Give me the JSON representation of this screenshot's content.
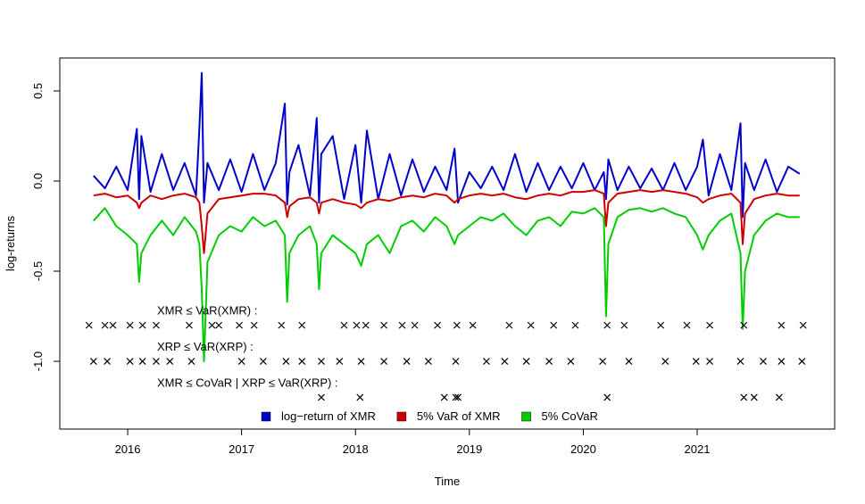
{
  "chart_data": {
    "type": "line",
    "x_label": "Time",
    "y_label": "log-returns",
    "xlim": [
      2015.404,
      2022.207
    ],
    "ylim": [
      -1.376,
      0.683
    ],
    "xticks": [
      2016,
      2017,
      2018,
      2019,
      2020,
      2021
    ],
    "yticks": [
      {
        "value": -1,
        "label": "-1.0"
      },
      {
        "value": -0.5,
        "label": "-0.5"
      },
      {
        "value": 0,
        "label": "0.0"
      },
      0.5
    ],
    "legend": "bottom",
    "x": [
      2015.7,
      2015.8,
      2015.9,
      2016.0,
      2016.08,
      2016.1,
      2016.12,
      2016.2,
      2016.3,
      2016.4,
      2016.5,
      2016.6,
      2016.63,
      2016.65,
      2016.67,
      2016.7,
      2016.8,
      2016.9,
      2017.0,
      2017.1,
      2017.2,
      2017.3,
      2017.38,
      2017.4,
      2017.42,
      2017.5,
      2017.6,
      2017.66,
      2017.68,
      2017.7,
      2017.8,
      2017.9,
      2018.0,
      2018.05,
      2018.1,
      2018.2,
      2018.3,
      2018.4,
      2018.5,
      2018.6,
      2018.7,
      2018.8,
      2018.87,
      2018.9,
      2019.0,
      2019.1,
      2019.2,
      2019.3,
      2019.4,
      2019.5,
      2019.6,
      2019.7,
      2019.8,
      2019.9,
      2020.0,
      2020.1,
      2020.18,
      2020.2,
      2020.22,
      2020.3,
      2020.4,
      2020.5,
      2020.6,
      2020.7,
      2020.8,
      2020.9,
      2021.0,
      2021.05,
      2021.1,
      2021.2,
      2021.3,
      2021.38,
      2021.4,
      2021.42,
      2021.5,
      2021.6,
      2021.7,
      2021.8,
      2021.9
    ],
    "series": [
      {
        "name": "log−return of XMR",
        "color": "#0000cd",
        "values": [
          0.03,
          -0.04,
          0.08,
          -0.05,
          0.29,
          -0.1,
          0.25,
          -0.06,
          0.15,
          -0.05,
          0.1,
          -0.08,
          0.3,
          0.6,
          -0.12,
          0.1,
          -0.05,
          0.12,
          -0.06,
          0.15,
          -0.05,
          0.1,
          0.43,
          -0.13,
          0.05,
          0.2,
          -0.08,
          0.35,
          -0.12,
          0.15,
          0.25,
          -0.1,
          0.2,
          -0.12,
          0.28,
          -0.1,
          0.15,
          -0.08,
          0.12,
          -0.06,
          0.08,
          -0.05,
          0.18,
          -0.12,
          0.05,
          -0.04,
          0.08,
          -0.05,
          0.15,
          -0.06,
          0.1,
          -0.05,
          0.08,
          -0.04,
          0.1,
          -0.05,
          0.05,
          -0.1,
          0.12,
          -0.05,
          0.08,
          -0.04,
          0.07,
          -0.05,
          0.1,
          -0.05,
          0.08,
          0.23,
          -0.08,
          0.15,
          -0.05,
          0.32,
          -0.2,
          0.1,
          -0.05,
          0.12,
          -0.06,
          0.08,
          0.04
        ]
      },
      {
        "name": "5% VaR of XMR",
        "color": "#cd0000",
        "values": [
          -0.08,
          -0.07,
          -0.09,
          -0.08,
          -0.12,
          -0.15,
          -0.12,
          -0.08,
          -0.1,
          -0.08,
          -0.07,
          -0.09,
          -0.12,
          -0.25,
          -0.4,
          -0.18,
          -0.1,
          -0.09,
          -0.08,
          -0.07,
          -0.07,
          -0.08,
          -0.12,
          -0.2,
          -0.14,
          -0.1,
          -0.09,
          -0.12,
          -0.18,
          -0.12,
          -0.1,
          -0.12,
          -0.13,
          -0.15,
          -0.12,
          -0.1,
          -0.11,
          -0.09,
          -0.08,
          -0.09,
          -0.07,
          -0.08,
          -0.12,
          -0.1,
          -0.08,
          -0.07,
          -0.08,
          -0.07,
          -0.09,
          -0.1,
          -0.08,
          -0.07,
          -0.08,
          -0.06,
          -0.06,
          -0.05,
          -0.07,
          -0.25,
          -0.12,
          -0.07,
          -0.06,
          -0.05,
          -0.06,
          -0.05,
          -0.06,
          -0.07,
          -0.09,
          -0.12,
          -0.1,
          -0.08,
          -0.07,
          -0.12,
          -0.35,
          -0.18,
          -0.1,
          -0.08,
          -0.07,
          -0.08,
          -0.08
        ]
      },
      {
        "name": "5% CoVaR",
        "color": "#00cd00",
        "values": [
          -0.22,
          -0.15,
          -0.25,
          -0.3,
          -0.35,
          -0.56,
          -0.4,
          -0.3,
          -0.22,
          -0.3,
          -0.2,
          -0.28,
          -0.35,
          -0.6,
          -1.0,
          -0.45,
          -0.3,
          -0.25,
          -0.28,
          -0.2,
          -0.25,
          -0.22,
          -0.3,
          -0.67,
          -0.4,
          -0.3,
          -0.25,
          -0.35,
          -0.6,
          -0.4,
          -0.3,
          -0.35,
          -0.4,
          -0.47,
          -0.35,
          -0.3,
          -0.4,
          -0.25,
          -0.22,
          -0.28,
          -0.2,
          -0.25,
          -0.35,
          -0.3,
          -0.25,
          -0.2,
          -0.22,
          -0.18,
          -0.25,
          -0.3,
          -0.22,
          -0.2,
          -0.25,
          -0.17,
          -0.18,
          -0.15,
          -0.2,
          -0.75,
          -0.35,
          -0.2,
          -0.16,
          -0.15,
          -0.17,
          -0.15,
          -0.18,
          -0.2,
          -0.3,
          -0.38,
          -0.3,
          -0.22,
          -0.18,
          -0.4,
          -0.82,
          -0.5,
          -0.3,
          -0.22,
          -0.18,
          -0.2,
          -0.2
        ]
      }
    ],
    "markers": [
      {
        "label": "XMR ≤ VaR(XMR) :",
        "y": -0.8,
        "x": [
          2015.66,
          2015.8,
          2015.87,
          2016.02,
          2016.13,
          2016.25,
          2016.54,
          2016.74,
          2016.8,
          2016.98,
          2017.11,
          2017.35,
          2017.53,
          2017.9,
          2018.01,
          2018.09,
          2018.25,
          2018.41,
          2018.52,
          2018.72,
          2018.89,
          2019.03,
          2019.35,
          2019.54,
          2019.74,
          2019.93,
          2020.21,
          2020.36,
          2020.68,
          2020.91,
          2021.11,
          2021.41,
          2021.74,
          2021.93
        ]
      },
      {
        "label": "XRP ≤ VaR(XRP) :",
        "y": -1.0,
        "x": [
          2015.7,
          2015.82,
          2016.02,
          2016.13,
          2016.25,
          2016.37,
          2016.56,
          2017.0,
          2017.19,
          2017.39,
          2017.53,
          2017.7,
          2017.86,
          2018.05,
          2018.25,
          2018.45,
          2018.64,
          2018.88,
          2019.15,
          2019.31,
          2019.5,
          2019.7,
          2019.89,
          2020.17,
          2020.4,
          2020.72,
          2020.99,
          2021.11,
          2021.38,
          2021.58,
          2021.74,
          2021.92
        ]
      },
      {
        "label": "XMR ≤ CoVaR | XRP ≤ VaR(XRP) :",
        "y": -1.2,
        "x": [
          2017.7,
          2018.04,
          2018.78,
          2018.88,
          2018.9,
          2020.21,
          2021.41,
          2021.5,
          2021.72
        ]
      }
    ]
  }
}
